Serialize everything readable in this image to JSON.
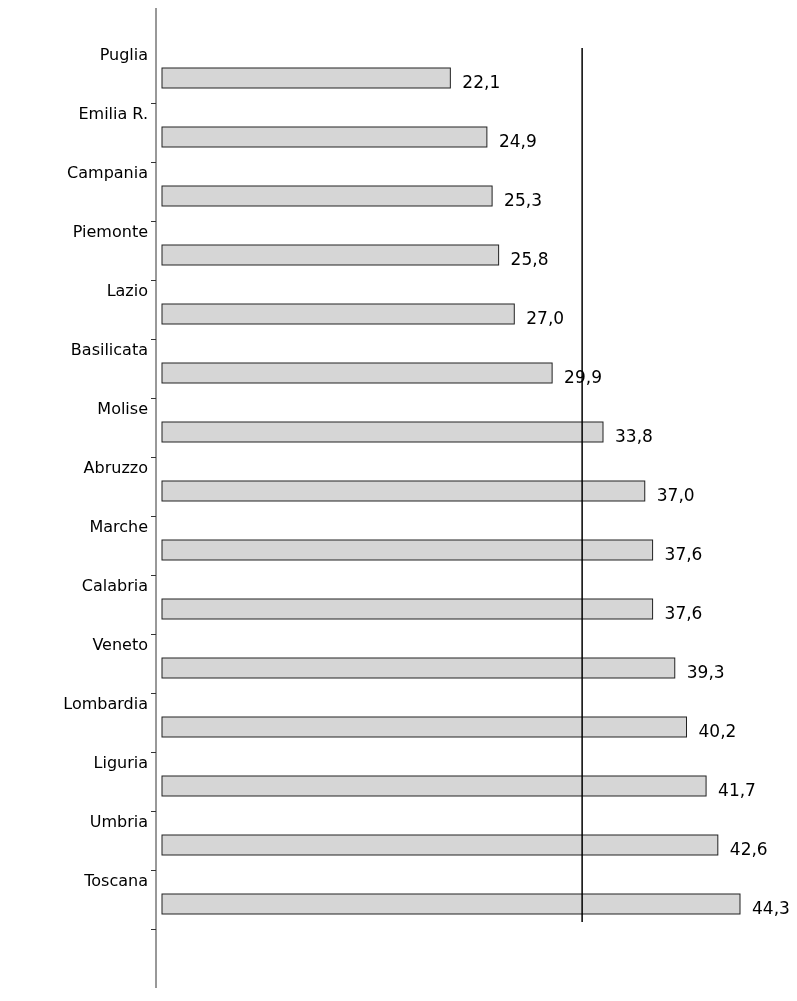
{
  "chart_data": {
    "type": "bar",
    "orientation": "horizontal",
    "relative": false,
    "data_labels": true,
    "categories": [
      "Puglia",
      "Emilia R.",
      "Campania",
      "Piemonte",
      "Lazio",
      "Basilicata",
      "Molise",
      "Abruzzo",
      "Marche",
      "Calabria",
      "Veneto",
      "Lombardia",
      "Liguria",
      "Umbria",
      "Toscana"
    ],
    "values": [
      22.1,
      24.9,
      25.3,
      25.8,
      27.0,
      29.9,
      33.8,
      37.0,
      37.6,
      37.6,
      39.3,
      40.2,
      41.7,
      42.6,
      44.3
    ],
    "value_labels": [
      "22,1",
      "24,9",
      "25,3",
      "25,8",
      "27,0",
      "29,9",
      "33,8",
      "37,0",
      "37,6",
      "37,6",
      "39,3",
      "40,2",
      "41,7",
      "42,6",
      "44,3"
    ],
    "color": "#d6d6d6",
    "ref_lines": [
      {
        "axis": "x",
        "value": 32.2,
        "color": "#000000"
      }
    ]
  }
}
